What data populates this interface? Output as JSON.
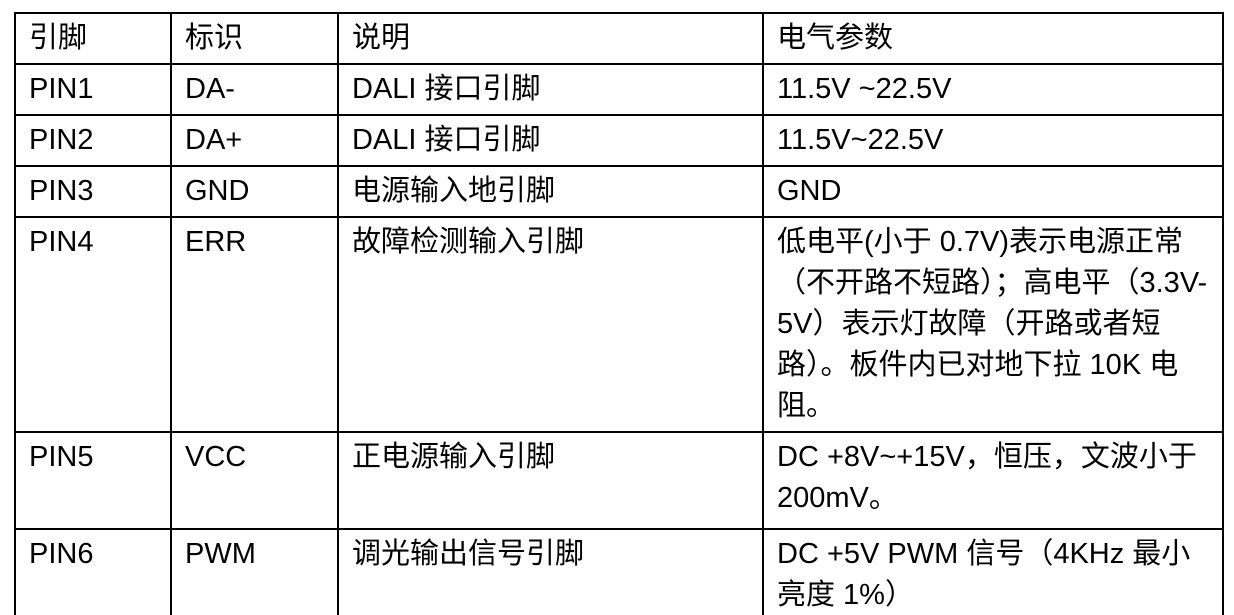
{
  "table": {
    "headers": {
      "pin": "引脚",
      "label": "标识",
      "desc": "说明",
      "params": "电气参数"
    },
    "rows": [
      {
        "pin": "PIN1",
        "label": "DA-",
        "desc": "DALI 接口引脚",
        "params": "11.5V ~22.5V"
      },
      {
        "pin": "PIN2",
        "label": "DA+",
        "desc": "DALI 接口引脚",
        "params": "11.5V~22.5V"
      },
      {
        "pin": "PIN3",
        "label": "GND",
        "desc": "电源输入地引脚",
        "params": "GND"
      },
      {
        "pin": "PIN4",
        "label": "ERR",
        "desc": "故障检测输入引脚",
        "params": "低电平(小于 0.7V)表示电源正常（不开路不短路）；高电平（3.3V-5V）表示灯故障（开路或者短路）。板件内已对地下拉 10K 电阻。"
      },
      {
        "pin": "PIN5",
        "label": "VCC",
        "desc": "正电源输入引脚",
        "params": "DC +8V~+15V，恒压，文波小于 200mV。"
      },
      {
        "pin": "PIN6",
        "label": "PWM",
        "desc": "调光输出信号引脚",
        "params": "DC +5V PWM 信号（4KHz 最小亮度 1%）"
      }
    ]
  },
  "colors": {
    "border": "#000000",
    "text": "#000000",
    "background": "#ffffff"
  }
}
